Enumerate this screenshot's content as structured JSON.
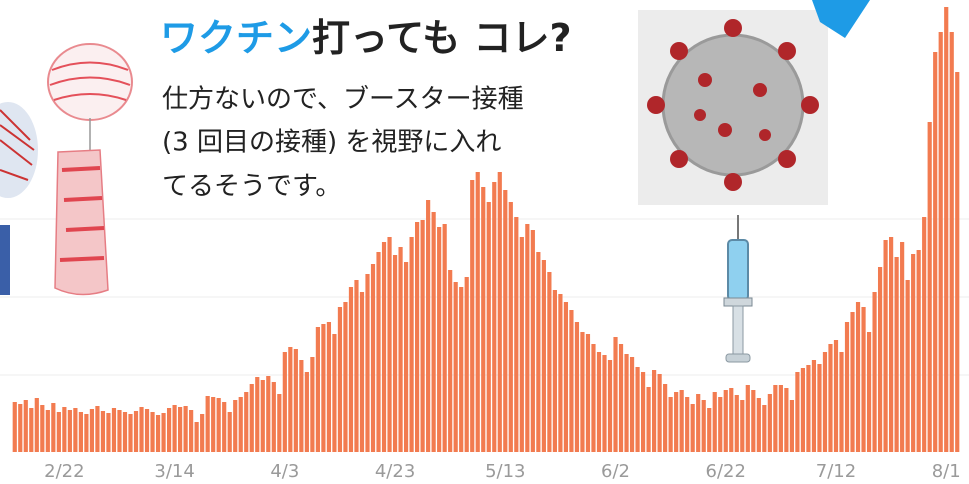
{
  "chart_data": {
    "type": "bar",
    "title_parts": [
      "ワクチン",
      "打っても コレ?"
    ],
    "annotation_lines": [
      "仕方ないので、ブースター接種",
      "(3 回目の接種) を視野に入れ",
      "てるそうです。"
    ],
    "color": "#f27b50",
    "ylim": [
      0,
      452
    ],
    "categories": [
      null,
      null,
      null,
      null,
      null,
      null,
      null,
      null,
      null,
      "2/22",
      null,
      null,
      null,
      null,
      null,
      null,
      null,
      null,
      null,
      null,
      null,
      null,
      null,
      null,
      null,
      null,
      null,
      null,
      null,
      "3/14",
      null,
      null,
      null,
      null,
      null,
      null,
      null,
      null,
      null,
      null,
      null,
      null,
      null,
      null,
      null,
      null,
      null,
      null,
      null,
      "4/3",
      null,
      null,
      null,
      null,
      null,
      null,
      null,
      null,
      null,
      null,
      null,
      null,
      null,
      null,
      null,
      null,
      null,
      null,
      null,
      "4/23",
      null,
      null,
      null,
      null,
      null,
      null,
      null,
      null,
      null,
      null,
      null,
      null,
      null,
      null,
      null,
      null,
      null,
      null,
      null,
      "5/13",
      null,
      null,
      null,
      null,
      null,
      null,
      null,
      null,
      null,
      null,
      null,
      null,
      null,
      null,
      null,
      null,
      null,
      null,
      null,
      "6/2",
      null,
      null,
      null,
      null,
      null,
      null,
      null,
      null,
      null,
      null,
      null,
      null,
      null,
      null,
      null,
      null,
      null,
      null,
      null,
      "6/22",
      null,
      null,
      null,
      null,
      null,
      null,
      null,
      null,
      null,
      null,
      null,
      null,
      null,
      null,
      null,
      null,
      null,
      null,
      null,
      "7/12",
      null,
      null,
      null,
      null,
      null,
      null,
      null,
      null,
      null,
      null,
      null,
      null,
      null,
      null,
      null,
      null,
      null,
      null,
      null,
      "8/1",
      null,
      null
    ],
    "values": [
      50,
      48,
      52,
      44,
      54,
      47,
      42,
      49,
      40,
      45,
      42,
      44,
      40,
      38,
      43,
      46,
      41,
      39,
      44,
      42,
      40,
      38,
      41,
      45,
      43,
      40,
      37,
      39,
      44,
      47,
      45,
      46,
      42,
      30,
      38,
      56,
      55,
      54,
      50,
      40,
      52,
      55,
      60,
      68,
      75,
      72,
      76,
      70,
      58,
      100,
      105,
      103,
      92,
      80,
      95,
      125,
      128,
      130,
      118,
      145,
      150,
      165,
      172,
      160,
      178,
      188,
      200,
      210,
      215,
      197,
      205,
      190,
      215,
      230,
      232,
      252,
      240,
      225,
      228,
      182,
      170,
      165,
      175,
      272,
      280,
      265,
      250,
      270,
      280,
      262,
      250,
      235,
      215,
      228,
      222,
      200,
      192,
      180,
      162,
      158,
      150,
      142,
      130,
      120,
      118,
      108,
      100,
      97,
      92,
      115,
      108,
      98,
      95,
      85,
      80,
      65,
      82,
      78,
      68,
      55,
      60,
      62,
      55,
      48,
      58,
      52,
      44,
      60,
      55,
      62,
      64,
      57,
      52,
      67,
      62,
      54,
      47,
      58,
      67,
      67,
      64,
      52,
      80,
      84,
      87,
      92,
      88,
      100,
      108,
      112,
      100,
      130,
      140,
      150,
      145,
      120,
      160,
      185,
      212,
      215,
      195,
      210,
      172,
      198,
      202,
      235,
      330,
      400,
      420,
      445,
      420,
      380
    ]
  }
}
